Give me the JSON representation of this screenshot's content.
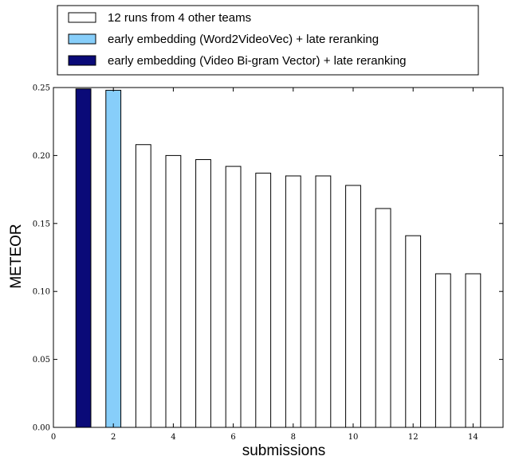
{
  "chart_data": {
    "type": "bar",
    "xlabel": "submissions",
    "ylabel": "METEOR",
    "xlim": [
      0,
      15
    ],
    "ylim": [
      0.0,
      0.25
    ],
    "xticks": [
      0,
      2,
      4,
      6,
      8,
      10,
      12,
      14
    ],
    "yticks": [
      0.0,
      0.05,
      0.1,
      0.15,
      0.2,
      0.25
    ],
    "ytick_labels": [
      "0.00",
      "0.05",
      "0.10",
      "0.15",
      "0.20",
      "0.25"
    ],
    "grid": false,
    "legend_position": "top, above plot",
    "legend": [
      {
        "label": "12 runs from 4 other teams",
        "color": "#ffffff"
      },
      {
        "label": "early embedding (Word2VideoVec) + late reranking",
        "color": "#87cefa"
      },
      {
        "label": "early embedding (Video Bi-gram Vector) + late reranking",
        "color": "#0a0a78"
      }
    ],
    "bars": [
      {
        "x": 1,
        "value": 0.249,
        "series": 2
      },
      {
        "x": 2,
        "value": 0.248,
        "series": 1
      },
      {
        "x": 3,
        "value": 0.208,
        "series": 0
      },
      {
        "x": 4,
        "value": 0.2,
        "series": 0
      },
      {
        "x": 5,
        "value": 0.197,
        "series": 0
      },
      {
        "x": 6,
        "value": 0.192,
        "series": 0
      },
      {
        "x": 7,
        "value": 0.187,
        "series": 0
      },
      {
        "x": 8,
        "value": 0.185,
        "series": 0
      },
      {
        "x": 9,
        "value": 0.185,
        "series": 0
      },
      {
        "x": 10,
        "value": 0.178,
        "series": 0
      },
      {
        "x": 11,
        "value": 0.161,
        "series": 0
      },
      {
        "x": 12,
        "value": 0.141,
        "series": 0
      },
      {
        "x": 13,
        "value": 0.113,
        "series": 0
      },
      {
        "x": 14,
        "value": 0.113,
        "series": 0
      }
    ]
  }
}
